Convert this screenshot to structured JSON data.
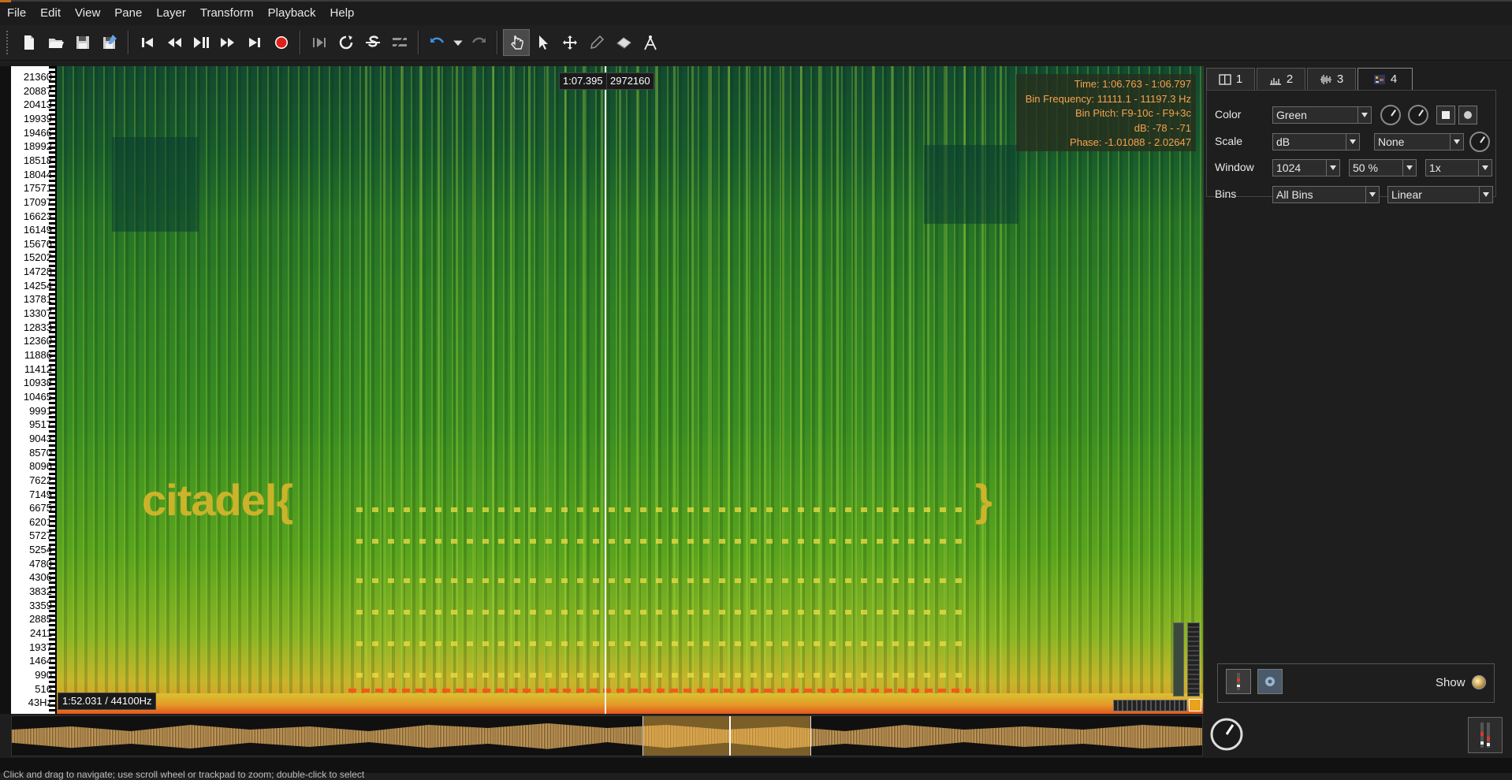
{
  "menu": [
    "File",
    "Edit",
    "View",
    "Pane",
    "Layer",
    "Transform",
    "Playback",
    "Help"
  ],
  "toolbar": {
    "icons": [
      "new-session-icon",
      "open-icon",
      "save-icon",
      "save-as-icon",
      "rewind-start-icon",
      "rewind-icon",
      "play-pause-icon",
      "fast-forward-icon",
      "fast-forward-end-icon",
      "record-icon",
      "constrain-playback-icon",
      "loop-icon",
      "solo-icon",
      "align-icon",
      "undo-icon",
      "undo-menu-icon",
      "redo-icon",
      "navigate-icon",
      "select-icon",
      "move-icon",
      "draw-icon",
      "erase-icon",
      "measure-icon"
    ],
    "accent_record": "#e0201c",
    "accent_undo": "#3a8fe0"
  },
  "ruler": {
    "ticks": [
      "21360",
      "20887",
      "20413",
      "19939",
      "19466",
      "18992",
      "18518",
      "18044",
      "17571",
      "17097",
      "16623",
      "16149",
      "15676",
      "15202",
      "14728",
      "14254",
      "13781",
      "13307",
      "12833",
      "12360",
      "11886",
      "11412",
      "10938",
      "10465",
      "9991",
      "9517",
      "9043",
      "8570",
      "8096",
      "7622",
      "7149",
      "6675",
      "6201",
      "5727",
      "5254",
      "4780",
      "4306",
      "3832",
      "3359",
      "2885",
      "2411",
      "1937",
      "1464",
      "990",
      "516",
      "43Hz"
    ]
  },
  "spectrogram": {
    "hidden_text_left": "citadel{",
    "hidden_text_right": "}",
    "cursor_time": "1:07.395",
    "cursor_frame": "2972160",
    "duration_label": "1:52.031 / 44100Hz",
    "info": {
      "time": "Time: 1:06.763 - 1:06.797",
      "bin_frequency": "Bin Frequency: 11111.1 - 11197.3 Hz",
      "bin_pitch": "Bin Pitch: F9-10c - F9+3c",
      "db": "dB: -78 - -71",
      "phase": "Phase: -1.01088 - 2.02647"
    },
    "info_color": "#f7a24c",
    "text_color": "#d9b62c"
  },
  "tabs": [
    {
      "label": "1",
      "icon": "pane-icon"
    },
    {
      "label": "2",
      "icon": "ruler-icon"
    },
    {
      "label": "3",
      "icon": "waveform-icon"
    },
    {
      "label": "4",
      "icon": "spectrogram-icon"
    }
  ],
  "properties": {
    "color_label": "Color",
    "color_value": "Green",
    "scale_label": "Scale",
    "scale_value": "dB",
    "normalize_value": "None",
    "window_label": "Window",
    "window_size": "1024",
    "window_overlap": "50 %",
    "window_oversample": "1x",
    "bins_label": "Bins",
    "bins_value": "All Bins",
    "bins_mode": "Linear"
  },
  "layer_panel": {
    "show_label": "Show"
  },
  "status": {
    "text": "Click and drag to navigate; use scroll wheel or trackpad to zoom; double-click to select"
  }
}
